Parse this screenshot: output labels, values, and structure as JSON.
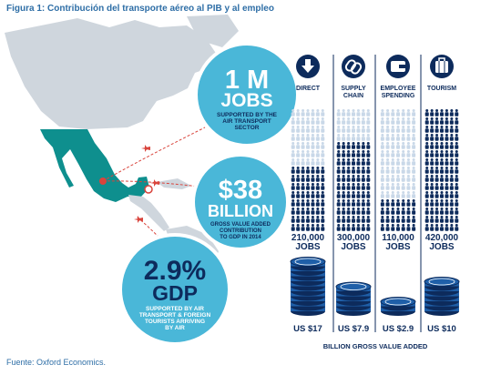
{
  "figure_title": "Figura 1: Contribución del transporte aéreo al PIB y al empleo",
  "source": "Fuente: Oxford Economics.",
  "callouts": {
    "jobs": {
      "big": "1 M",
      "mid": "JOBS",
      "lines": [
        "SUPPORTED BY THE",
        "AIR TRANSPORT",
        "SECTOR"
      ]
    },
    "gva": {
      "big": "$38",
      "mid": "BILLION",
      "lines": [
        "GROSS VALUE ADDED",
        "CONTRIBUTION",
        "TO GDP IN 2014"
      ]
    },
    "gdp": {
      "big": "2.9%",
      "mid": "GDP",
      "lines": [
        "SUPPORTED BY AIR",
        "TRANSPORT & FOREIGN",
        "TOURISTS ARRIVING",
        "BY AIR"
      ]
    }
  },
  "colors": {
    "navy": "#0d2b5c",
    "accent_blue": "#1f5fa8",
    "light_person": "#c9d8e8",
    "circle_fill": "#4ab7d8",
    "mexico": "#0e8f8e",
    "land": "#cfd6dd",
    "sea": "#ffffff"
  },
  "chart_data": {
    "type": "bar",
    "categories": [
      "DIRECT",
      "SUPPLY CHAIN",
      "EMPLOYEE SPENDING",
      "TOURISM"
    ],
    "icons": [
      "down-arrow-icon",
      "chain-link-icon",
      "wallet-icon",
      "luggage-icon"
    ],
    "series": [
      {
        "values": [
          210000,
          300000,
          110000,
          420000
        ],
        "labels": [
          "210,000",
          "300,000",
          "110,000",
          "420,000"
        ],
        "unit": "JOBS"
      },
      {
        "values": [
          17,
          7.9,
          2.9,
          10
        ],
        "labels": [
          "US $17",
          "US $7.9",
          "US $2.9",
          "US $10"
        ]
      }
    ],
    "xlabel": "BILLION GROSS VALUE ADDED"
  }
}
